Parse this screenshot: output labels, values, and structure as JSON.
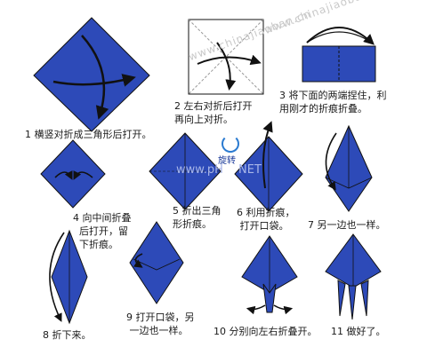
{
  "watermarks": {
    "site": "www.chinajiaoban.cn",
    "brand": "www.pH",
    "brand_suffix": "NET",
    "rotate_label": "旋转"
  },
  "steps": [
    {
      "caption": "1 横竖对折成三角形后打开。"
    },
    {
      "caption": "2 左右对折后打开\n再向上对折。"
    },
    {
      "caption": "3 将下面的两端捏住，利\n用刚才的折痕折叠。"
    },
    {
      "caption": "4 向中间折叠\n  后打开，留\n  下折痕。"
    },
    {
      "caption": "5 折出三角\n形折痕。"
    },
    {
      "caption": "6 利用折痕，\n 打开口袋。"
    },
    {
      "caption": "7 另一边也一样。"
    },
    {
      "caption": "8 折下来。"
    },
    {
      "caption": "9 打开口袋，另\n 一边也一样。"
    },
    {
      "caption": "10 分别向左右折叠开。"
    },
    {
      "caption": "11 做好了。"
    }
  ],
  "colors": {
    "paper": "#2d4ab8",
    "paper_dark": "#1d3390",
    "line": "#111111",
    "white_face": "#ffffff"
  }
}
